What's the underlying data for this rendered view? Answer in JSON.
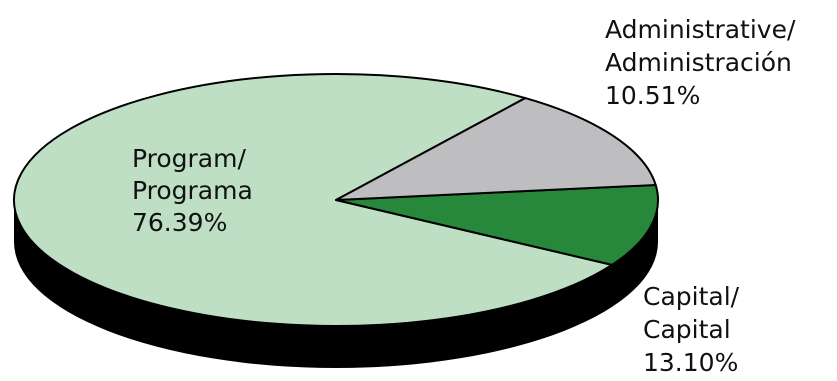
{
  "chart_data": {
    "type": "pie",
    "style": "3d-oval",
    "slices": [
      {
        "label_lines": [
          "Program/",
          "Programa"
        ],
        "value": 76.39,
        "value_label": "76.39%",
        "color": "#bfdfc5"
      },
      {
        "label_lines": [
          "Administrative/",
          "Administración"
        ],
        "value": 10.51,
        "value_label": "10.51%",
        "color": "#27883c"
      },
      {
        "label_lines": [
          "Capital/",
          "Capital"
        ],
        "value": 13.1,
        "value_label": "13.10%",
        "color": "#bebec0"
      }
    ],
    "side_color": "#000000",
    "outline_color": "#000000"
  }
}
